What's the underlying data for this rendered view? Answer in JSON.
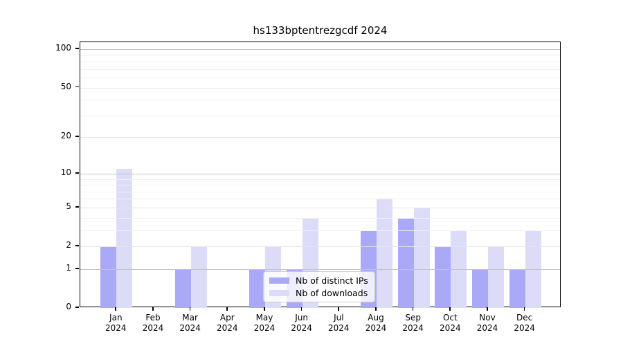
{
  "title": "hs133bptentrezgcdf 2024",
  "legend": {
    "items": [
      {
        "label": "Nb of distinct IPs",
        "color": "#a9a9f7"
      },
      {
        "label": "Nb of downloads",
        "color": "#dcdcf8"
      }
    ],
    "position": "bottom-center"
  },
  "chart_data": {
    "type": "bar",
    "title": "hs133bptentrezgcdf 2024",
    "categories": [
      "Jan",
      "Feb",
      "Mar",
      "Apr",
      "May",
      "Jun",
      "Jul",
      "Aug",
      "Sep",
      "Oct",
      "Nov",
      "Dec"
    ],
    "year_label": "2024",
    "series": [
      {
        "name": "Nb of distinct IPs",
        "color": "#a9a9f7",
        "values": [
          2,
          0,
          1,
          0,
          1,
          1,
          0,
          3,
          4,
          2,
          1,
          1
        ]
      },
      {
        "name": "Nb of downloads",
        "color": "#dcdcf8",
        "values": [
          11,
          0,
          2,
          0,
          2,
          4,
          0,
          6,
          5,
          3,
          2,
          3
        ]
      }
    ],
    "yscale": "log1p",
    "ylim": [
      0,
      115
    ],
    "yticks": [
      0,
      1,
      2,
      5,
      10,
      20,
      50,
      100
    ],
    "minor_gridlines": [
      3,
      4,
      6,
      7,
      8,
      9,
      30,
      40,
      60,
      70,
      80,
      90
    ],
    "grid": "horizontal",
    "colors": {
      "decade_gridline": "#c3c3c3",
      "tick_gridline": "#e4e4e4",
      "minor_gridline": "#f2f2f2",
      "axis": "#000000"
    },
    "xlabel": "",
    "ylabel": ""
  }
}
